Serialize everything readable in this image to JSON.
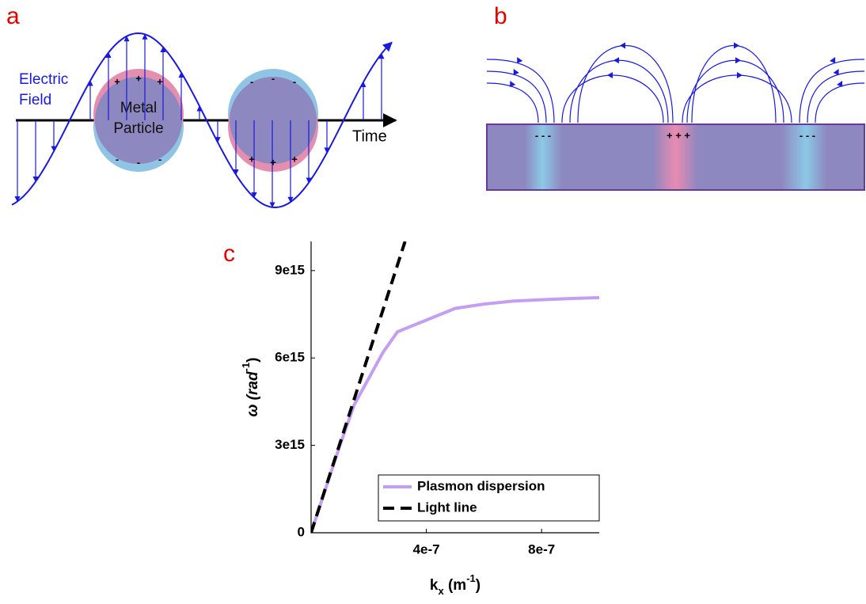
{
  "panel_a": {
    "label": "a",
    "field_label": [
      "Electric",
      "Field"
    ],
    "particle_label": [
      "Metal",
      "Particle"
    ],
    "axis_label": "Time",
    "charges_1_top": [
      "+",
      "+",
      "+"
    ],
    "charges_1_bottom": [
      "-",
      "-",
      "-"
    ],
    "charges_2_top": [
      "-",
      "-",
      "-"
    ],
    "charges_2_bottom": [
      "+",
      "+",
      "+"
    ]
  },
  "panel_b": {
    "label": "b",
    "charges": [
      "- - -",
      "+ + +",
      "- - -"
    ]
  },
  "chart_data": {
    "type": "line",
    "panel_label": "c",
    "x_label": [
      "k",
      "x",
      " (m",
      "-1",
      ")"
    ],
    "y_label": [
      "ω (rad",
      "-1",
      ")"
    ],
    "xlim": [
      0,
      1e-06
    ],
    "ylim": [
      0,
      1e+16
    ],
    "xticks": [
      {
        "value": 4e-07,
        "label": "4e-7"
      },
      {
        "value": 8e-07,
        "label": "8e-7"
      }
    ],
    "yticks": [
      0,
      {
        "value": 3000000000000000.0,
        "label": "3e15"
      },
      {
        "value": 6000000000000000.0,
        "label": "6e15"
      },
      {
        "value": 9000000000000000.0,
        "label": "9e15"
      }
    ],
    "legend": "lower right",
    "series": [
      {
        "name": "Plasmon dispersion",
        "color": "#c39ef2",
        "style": "solid",
        "x": [
          0,
          5e-08,
          1e-07,
          1.5e-07,
          2e-07,
          2.5e-07,
          3e-07,
          4e-07,
          5e-07,
          6e-07,
          7e-07,
          8e-07,
          9e-07,
          1e-06
        ],
        "values": [
          0,
          1500000000000000.0,
          3000000000000000.0,
          4400000000000000.0,
          5300000000000000.0,
          6200000000000000.0,
          6900000000000000.0,
          7300000000000000.0,
          7700000000000000.0,
          7850000000000000.0,
          7950000000000000.0,
          8000000000000000.0,
          8040000000000000.0,
          8070000000000000.0
        ]
      },
      {
        "name": "Light line",
        "color": "#000000",
        "style": "dashed",
        "x": [
          0,
          3.26e-07
        ],
        "values": [
          0,
          1e+16
        ]
      }
    ]
  }
}
